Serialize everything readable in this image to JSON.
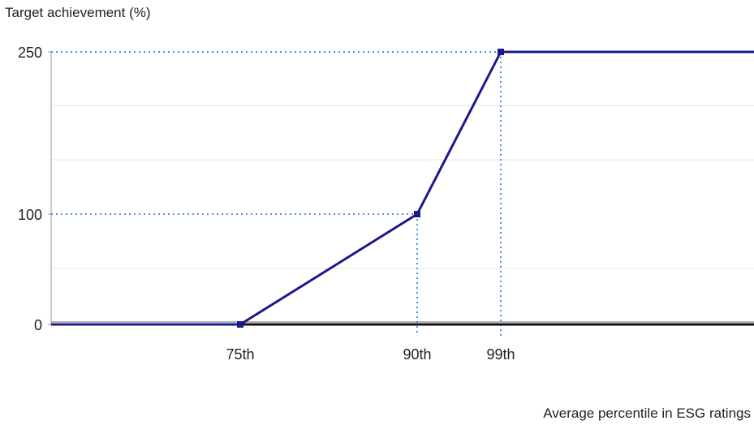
{
  "chart_data": {
    "type": "line",
    "title": "",
    "ylabel": "Target achievement (%)",
    "xlabel": "Average percentile in ESG ratings",
    "yticks": [
      {
        "value": 0,
        "label": "0"
      },
      {
        "value": 100,
        "label": "100"
      },
      {
        "value": 250,
        "label": "250"
      }
    ],
    "xticks": [
      {
        "value": 75,
        "label": "75th"
      },
      {
        "value": 90,
        "label": "90th"
      },
      {
        "value": 99,
        "label": "99th"
      }
    ],
    "ylim": [
      0,
      250
    ],
    "grid": true,
    "series": [
      {
        "x": [
          75,
          90,
          99
        ],
        "y": [
          0,
          100,
          250
        ]
      }
    ],
    "reference_lines": [
      {
        "x": 90,
        "y": 100
      },
      {
        "x": 99,
        "y": 250
      }
    ],
    "colors": {
      "line": "#1a1a8c",
      "reference": "#4a90e2",
      "grid": "#e4e4e4",
      "baseline": "#111111"
    }
  }
}
